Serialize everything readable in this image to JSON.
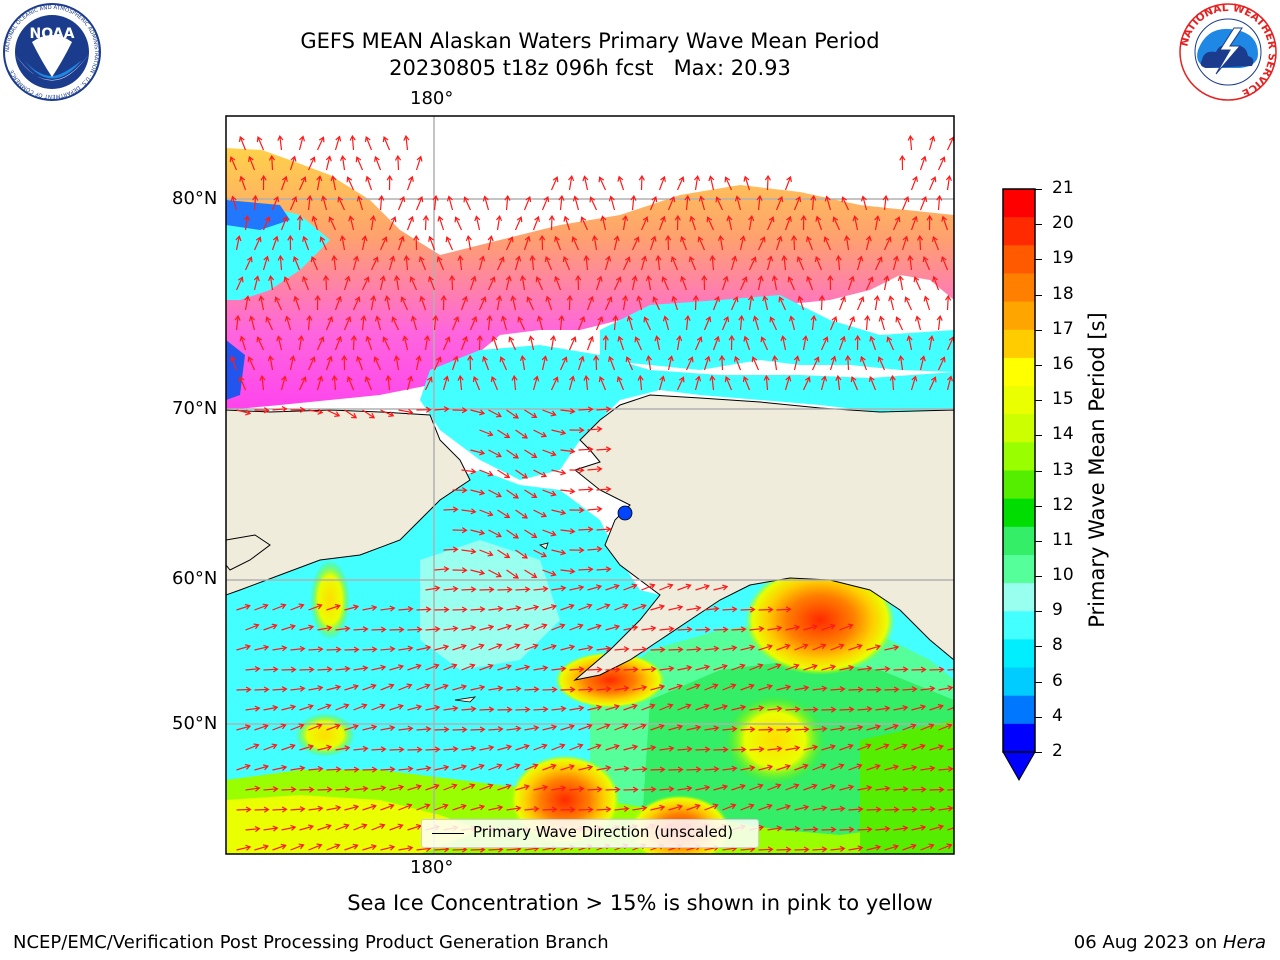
{
  "title": {
    "line1": "GEFS MEAN Alaskan Waters Primary Wave Mean Period",
    "line2": "20230805 t18z 096h fcst   Max: 20.93"
  },
  "map": {
    "lon_label_top": "180°",
    "lon_label_bottom": "180°",
    "lat_labels": [
      "80°N",
      "70°N",
      "60°N",
      "50°N"
    ],
    "colors": {
      "land": "#efecdc",
      "arrow": "#ff1a1a",
      "gridline": "#b0b0b0"
    }
  },
  "legend": {
    "label": "Primary Wave Direction (unscaled)"
  },
  "colorbar": {
    "label": "Primary Wave Mean Period [s]",
    "ticks": [
      "21",
      "20",
      "19",
      "18",
      "17",
      "16",
      "15",
      "14",
      "13",
      "12",
      "11",
      "10",
      "9",
      "8",
      "6",
      "4",
      "2"
    ],
    "colors_top_to_bottom": [
      "#ff0000",
      "#ff2a00",
      "#ff5a00",
      "#ff7f00",
      "#ffa500",
      "#ffcc00",
      "#ffff00",
      "#eaff00",
      "#ccff00",
      "#99ff00",
      "#55ee00",
      "#00dd00",
      "#33ee66",
      "#55ff99",
      "#99ffee",
      "#44ffff",
      "#00eeff",
      "#00ccff",
      "#0077ff",
      "#0000ff"
    ],
    "extend_color": "#0000ff"
  },
  "caption": "Sea Ice Concentration > 15% is shown in pink to yellow",
  "footer": {
    "left": "NCEP/EMC/Verification Post Processing Product Generation Branch",
    "right_date": "06 Aug 2023 on ",
    "right_host": "Hera"
  },
  "logos": {
    "noaa_text": "NOAA",
    "noaa_ring": "NATIONAL OCEANIC AND ATMOSPHERIC ADMINISTRATION · U.S. DEPARTMENT OF COMMERCE",
    "nws_ring": "NATIONAL WEATHER SERVICE"
  }
}
